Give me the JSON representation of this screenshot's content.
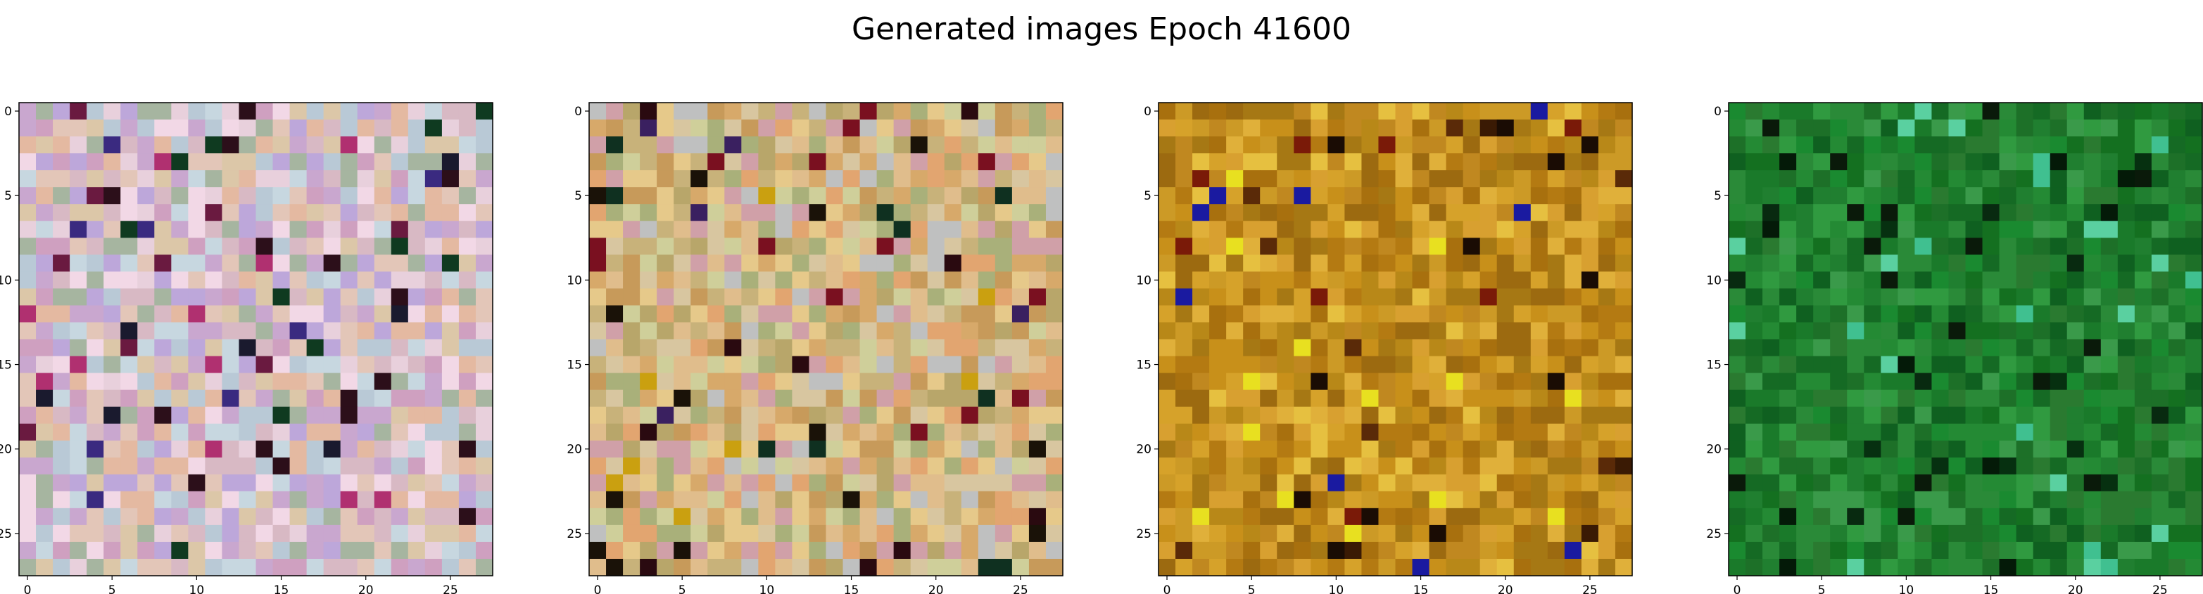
{
  "figure": {
    "title": "Generated images Epoch 41600"
  },
  "axes": {
    "x_ticks": [
      "0",
      "5",
      "10",
      "15",
      "20",
      "25"
    ],
    "y_ticks": [
      "0",
      "5",
      "10",
      "15",
      "20",
      "25"
    ]
  },
  "panels": [
    {
      "name": "image-1",
      "palette": [
        "#d8b9c4",
        "#e3c6b8",
        "#c9a7cf",
        "#b9c9d6",
        "#e8d0dc",
        "#a6b5a0",
        "#cfa0c0",
        "#f2d8e6",
        "#bda7da",
        "#e4b9a1",
        "#c7d7e0",
        "#dcc7a8"
      ],
      "accents": [
        "#1a1a2e",
        "#2c0f1a",
        "#6a1a40",
        "#3a2a80",
        "#0f3a20",
        "#b03070"
      ]
    },
    {
      "name": "image-2",
      "palette": [
        "#d7a96a",
        "#c8b27a",
        "#e0bd8c",
        "#b8a66a",
        "#d8c6a0",
        "#c79a5a",
        "#e6c98a",
        "#a9b07a",
        "#d0a0a8",
        "#bfc0c0",
        "#e2a570",
        "#cfcf9a"
      ],
      "accents": [
        "#1a1208",
        "#2a0a10",
        "#3a2060",
        "#0f3020",
        "#7a1020",
        "#caa010"
      ]
    },
    {
      "name": "image-3",
      "palette": [
        "#c8901a",
        "#b47a12",
        "#d6a22a",
        "#a8700e",
        "#e0b03a",
        "#9c6a10",
        "#c08820",
        "#d8a030",
        "#b88818",
        "#cc9a26",
        "#e6c040",
        "#a67814"
      ],
      "accents": [
        "#1a0c04",
        "#3a1a04",
        "#5a2a08",
        "#1a1aa0",
        "#7a1a08",
        "#e8e020"
      ]
    },
    {
      "name": "image-4",
      "palette": [
        "#1a7a2a",
        "#207f30",
        "#156a24",
        "#2a8a38",
        "#0f6020",
        "#248a34",
        "#1d7028",
        "#309a40",
        "#147020",
        "#2a7a30",
        "#1a8a30",
        "#3a9a4a"
      ],
      "accents": [
        "#041a08",
        "#082a10",
        "#0a1a0a",
        "#40c090",
        "#5ad0a0",
        "#063010"
      ]
    }
  ]
}
